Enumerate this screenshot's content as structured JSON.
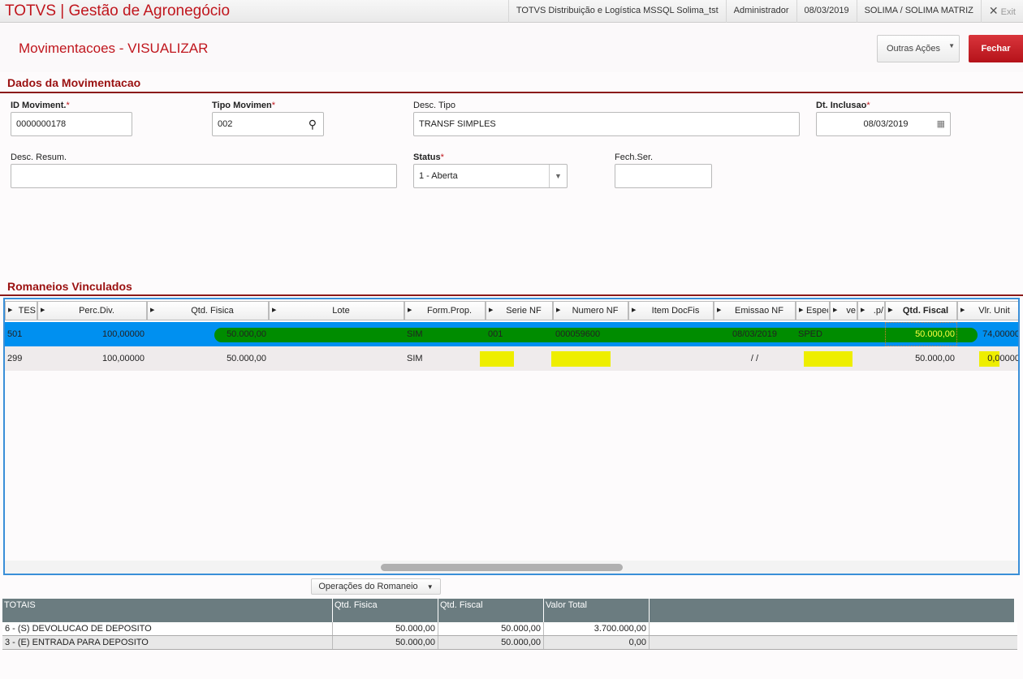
{
  "app": {
    "title": "TOTVS | Gestão de Agronegócio",
    "topbar": [
      "TOTVS Distribuição e Logística MSSQL Solima_tst",
      "Administrador",
      "08/03/2019",
      "SOLIMA / SOLIMA MATRIZ"
    ],
    "exit_label": "Exit"
  },
  "header": {
    "title": "Movimentacoes - VISUALIZAR",
    "outras_label": "Outras Ações",
    "fechar_label": "Fechar"
  },
  "form": {
    "section_title": "Dados da Movimentacao",
    "id_label": "ID Moviment.",
    "id_value": "0000000178",
    "tipo_label": "Tipo Movimen",
    "tipo_value": "002",
    "desc_tipo_label": "Desc. Tipo",
    "desc_tipo_value": "TRANSF SIMPLES",
    "dt_label": "Dt. Inclusao",
    "dt_value": "08/03/2019",
    "desc_resum_label": "Desc. Resum.",
    "desc_resum_value": "",
    "status_label": "Status",
    "status_value": "1 - Aberta",
    "fech_label": "Fech.Ser.",
    "fech_value": "",
    "required_mark": "*"
  },
  "romaneios": {
    "section_title": "Romaneios Vinculados",
    "columns": [
      "TES",
      "Perc.Div.",
      "Qtd. Fisica",
      "Lote",
      "Form.Prop.",
      "Serie NF",
      "Numero NF",
      "Item DocFis",
      "Emissao NF",
      "Especie",
      "ve",
      ".p/",
      "Qtd. Fiscal",
      "Vlr. Unit"
    ],
    "rows": [
      [
        "501",
        "100,00000",
        "50.000,00",
        "",
        "SIM",
        "001",
        "000059600",
        "",
        "08/03/2019",
        "SPED",
        "",
        "",
        "50.000,00",
        "74,00000"
      ],
      [
        "299",
        "100,00000",
        "50.000,00",
        "",
        "SIM",
        "",
        "",
        "",
        "/ /",
        "",
        "",
        "",
        "50.000,00",
        "0,00000"
      ]
    ],
    "selected_row": 0,
    "operations_label": "Operações do Romaneio"
  },
  "totais": {
    "columns": [
      "TOTAIS",
      "Qtd. Fisica",
      "Qtd. Fiscal",
      "Valor Total"
    ],
    "rows": [
      [
        "6 - (S) DEVOLUCAO DE DEPOSITO",
        "50.000,00",
        "50.000,00",
        "3.700.000,00"
      ],
      [
        "3 - (E) ENTRADA PARA DEPOSITO",
        "50.000,00",
        "50.000,00",
        "0,00"
      ]
    ]
  },
  "colors": {
    "brand": "#c0161d",
    "selection": "#0090f0",
    "redaction_green": "#008c00",
    "redaction_yellow": "#eeee00"
  }
}
